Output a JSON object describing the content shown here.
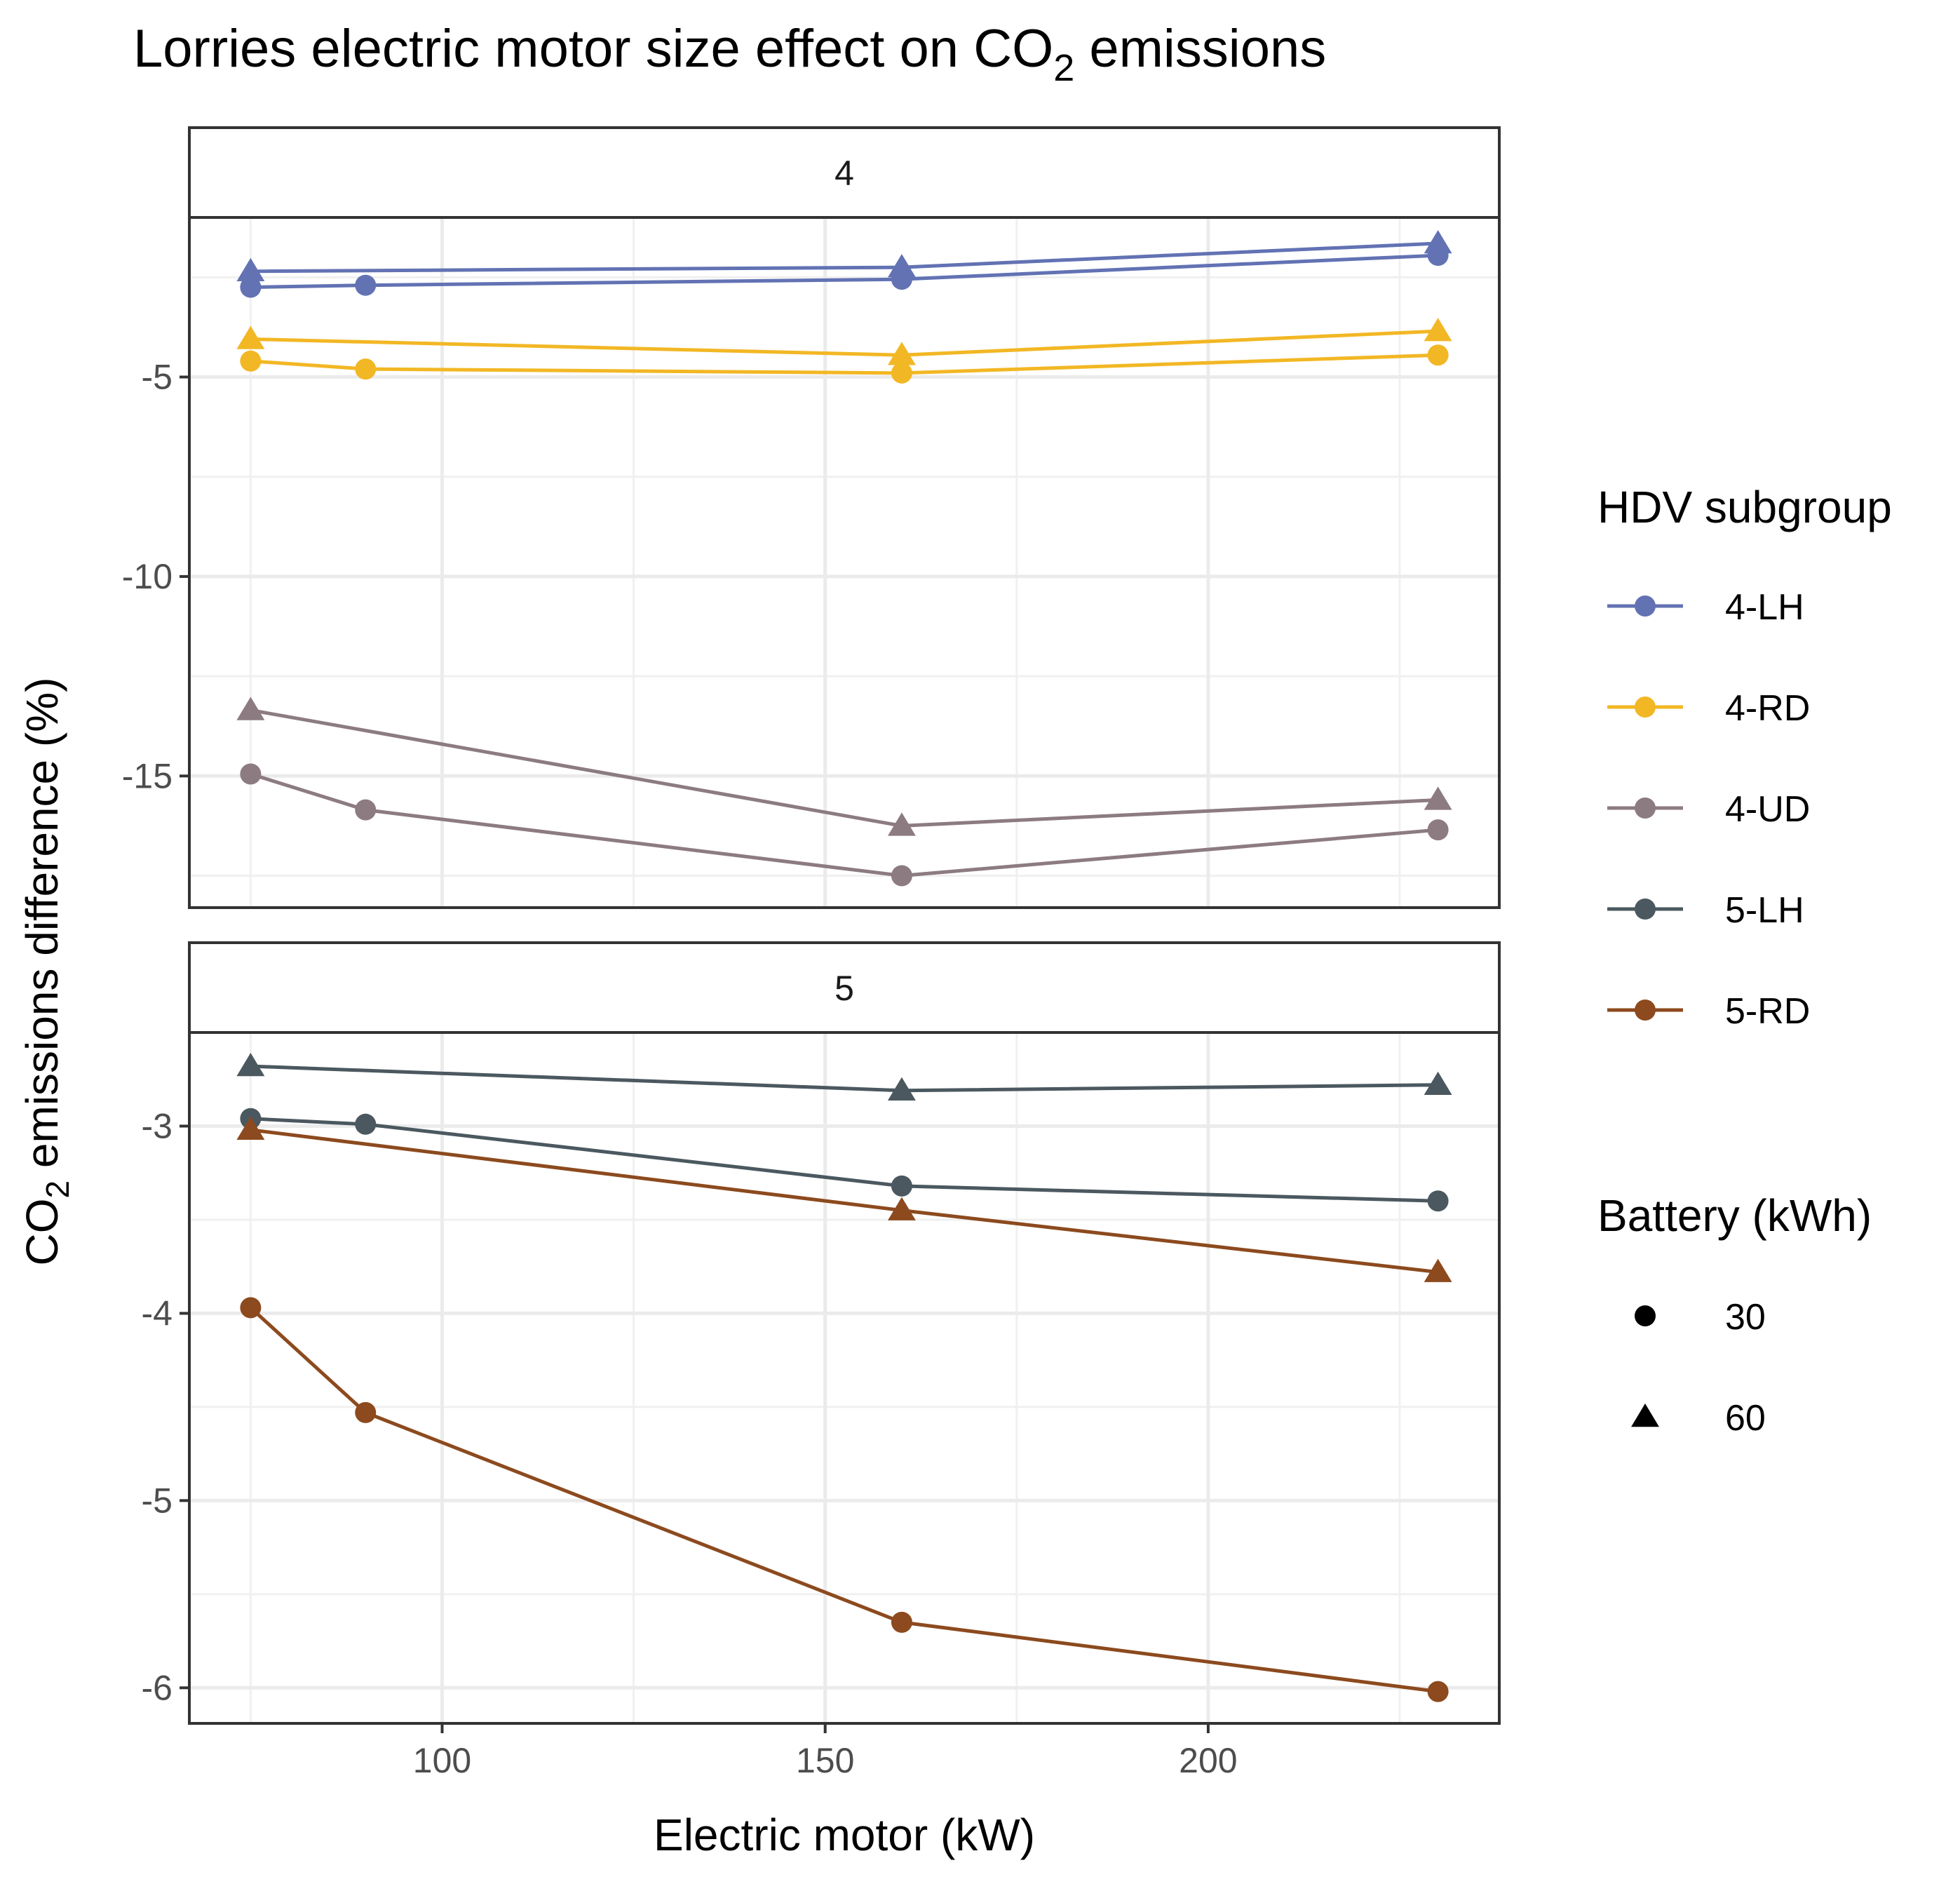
{
  "title": {
    "main": "Lorries electric motor size effect on CO",
    "sub": "2",
    "rest": " emissions"
  },
  "chart_data": {
    "type": "line",
    "title": "Lorries electric motor size effect on CO2 emissions",
    "xlabel": "Electric motor (kW)",
    "ylabel": "CO2 emissions difference (%)",
    "ylabel_parts": {
      "main": "CO",
      "sub": "2",
      "rest": " emissions difference (%)"
    },
    "xlim": [
      67,
      238
    ],
    "xticks": [
      100,
      150,
      200
    ],
    "xtick_labels": [
      "100",
      "150",
      "200"
    ],
    "facets": [
      {
        "label": "4",
        "ylim": [
          -18.3,
          -1.0
        ],
        "yticks": [
          -5,
          -10,
          -15
        ],
        "ytick_labels": [
          "-5",
          "-10",
          "-15"
        ],
        "series": [
          {
            "name": "4-LH",
            "battery": "30",
            "x": [
              75,
              90,
              160,
              230
            ],
            "y": [
              -2.75,
              -2.7,
              -2.55,
              -1.95
            ]
          },
          {
            "name": "4-LH",
            "battery": "60",
            "x": [
              75,
              160,
              230
            ],
            "y": [
              -2.35,
              -2.25,
              -1.65
            ]
          },
          {
            "name": "4-RD",
            "battery": "30",
            "x": [
              75,
              90,
              160,
              230
            ],
            "y": [
              -4.6,
              -4.8,
              -4.9,
              -4.45
            ]
          },
          {
            "name": "4-RD",
            "battery": "60",
            "x": [
              75,
              160,
              230
            ],
            "y": [
              -4.05,
              -4.45,
              -3.85
            ]
          },
          {
            "name": "4-UD",
            "battery": "30",
            "x": [
              75,
              90,
              160,
              230
            ],
            "y": [
              -14.95,
              -15.85,
              -17.5,
              -16.35
            ]
          },
          {
            "name": "4-UD",
            "battery": "60",
            "x": [
              75,
              160,
              230
            ],
            "y": [
              -13.35,
              -16.25,
              -15.6
            ]
          }
        ]
      },
      {
        "label": "5",
        "ylim": [
          -6.19,
          -2.5
        ],
        "yticks": [
          -3,
          -4,
          -5,
          -6
        ],
        "ytick_labels": [
          "-3",
          "-4",
          "-5",
          "-6"
        ],
        "series": [
          {
            "name": "5-LH",
            "battery": "30",
            "x": [
              75,
              90,
              160,
              230
            ],
            "y": [
              -2.96,
              -2.99,
              -3.32,
              -3.4
            ]
          },
          {
            "name": "5-LH",
            "battery": "60",
            "x": [
              75,
              160,
              230
            ],
            "y": [
              -2.68,
              -2.81,
              -2.78
            ]
          },
          {
            "name": "5-RD",
            "battery": "30",
            "x": [
              75,
              90,
              160,
              230
            ],
            "y": [
              -3.97,
              -4.53,
              -5.65,
              -6.02
            ]
          },
          {
            "name": "5-RD",
            "battery": "60",
            "x": [
              75,
              160,
              230
            ],
            "y": [
              -3.02,
              -3.45,
              -3.78
            ]
          }
        ]
      }
    ],
    "colors": {
      "4-LH": "#6272b3",
      "4-RD": "#f2b724",
      "4-UD": "#8c7b80",
      "5-LH": "#4b585f",
      "5-RD": "#8c4a1e"
    },
    "legend": {
      "position": "right",
      "hdv_title": "HDV subgroup",
      "hdv_items": [
        "4-LH",
        "4-RD",
        "4-UD",
        "5-LH",
        "5-RD"
      ],
      "battery_title": "Battery (kWh)",
      "battery_items": [
        {
          "label": "30",
          "shape": "circle"
        },
        {
          "label": "60",
          "shape": "triangle"
        }
      ]
    }
  }
}
